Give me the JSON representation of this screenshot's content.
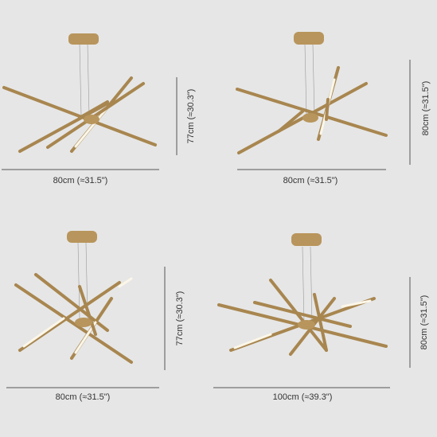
{
  "panels": [
    {
      "width_label": "80cm (≈31.5\")",
      "height_label": "77cm (≈30.3\")"
    },
    {
      "width_label": "80cm (≈31.5\")",
      "height_label": "80cm (≈31.5\")"
    },
    {
      "width_label": "80cm (≈31.5\")",
      "height_label": "77cm (≈30.3\")"
    },
    {
      "width_label": "100cm (≈39.3\")",
      "height_label": "80cm (≈31.5\")"
    }
  ]
}
